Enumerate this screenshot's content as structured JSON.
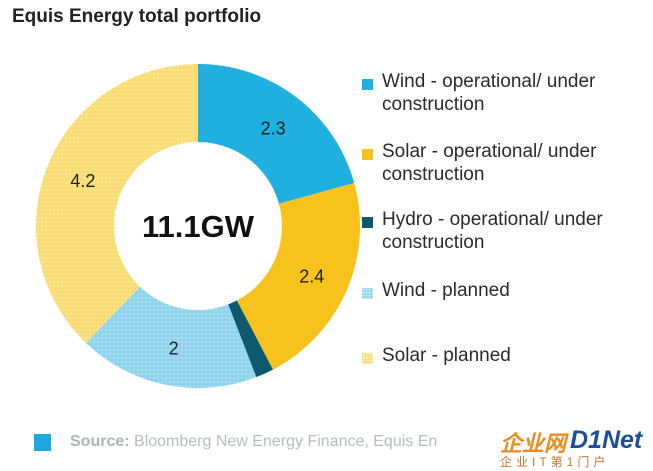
{
  "title": "Equis Energy total portfolio",
  "colors": {
    "wind_operational": "#1fb0e0",
    "solar_operational": "#f6c21b",
    "hydro_operational": "#0d5970",
    "wind_planned": "#8fd3ec",
    "solar_planned": "#f9dc72",
    "source_swatch": "#1fa8e0"
  },
  "chart_data": {
    "type": "pie",
    "variant": "donut",
    "center_label": "11.1GW",
    "slices": [
      {
        "name": "Wind - operational/ under construction",
        "value": 2.3,
        "label": "2.3",
        "color": "#1fb0e0",
        "pattern": "solid"
      },
      {
        "name": "Solar - operational/ under construction",
        "value": 2.4,
        "label": "2.4",
        "color": "#f6c21b",
        "pattern": "solid"
      },
      {
        "name": "Hydro - operational/ under construction",
        "value": 0.2,
        "label": "",
        "color": "#0d5970",
        "pattern": "solid"
      },
      {
        "name": "Wind - planned",
        "value": 2,
        "label": "2",
        "color": "#8fd3ec",
        "pattern": "dotted"
      },
      {
        "name": "Solar - planned",
        "value": 4.2,
        "label": "4.2",
        "color": "#f9dc72",
        "pattern": "dotted"
      }
    ],
    "legend_placement": "right"
  },
  "legend": [
    {
      "label_line1": "Wind - operational/ under",
      "label_line2": "construction"
    },
    {
      "label_line1": "Solar - operational/ under",
      "label_line2": "construction"
    },
    {
      "label_line1": "Hydro - operational/ under",
      "label_line2": "construction"
    },
    {
      "label_line1": "Wind - planned",
      "label_line2": ""
    },
    {
      "label_line1": "Solar - planned",
      "label_line2": ""
    }
  ],
  "source": {
    "prefix": "Source:",
    "text": "Bloomberg New Energy Finance, Equis En"
  },
  "watermark": {
    "main": "企业网",
    "brand": "D1Net",
    "sub": "企业IT第1门户"
  }
}
